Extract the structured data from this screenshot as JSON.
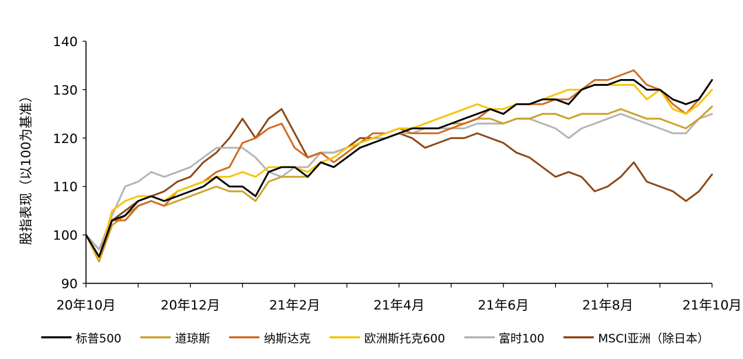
{
  "chart_data": {
    "type": "line",
    "ylabel": "股指表现（以100为基准）",
    "ylim": [
      90,
      140
    ],
    "yticks": [
      "90",
      "100",
      "110",
      "120",
      "130",
      "140"
    ],
    "xlim": [
      0,
      12
    ],
    "xticks": [
      {
        "pos": 0,
        "label": "20年10月"
      },
      {
        "pos": 2,
        "label": "20年12月"
      },
      {
        "pos": 4,
        "label": "21年2月"
      },
      {
        "pos": 6,
        "label": "21年4月"
      },
      {
        "pos": 8,
        "label": "21年6月"
      },
      {
        "pos": 10,
        "label": "21年8月"
      },
      {
        "pos": 12,
        "label": "21年10月"
      }
    ],
    "x": [
      0,
      0.25,
      0.5,
      0.75,
      1,
      1.25,
      1.5,
      1.75,
      2,
      2.25,
      2.5,
      2.75,
      3,
      3.25,
      3.5,
      3.75,
      4,
      4.25,
      4.5,
      4.75,
      5,
      5.25,
      5.5,
      5.75,
      6,
      6.25,
      6.5,
      6.75,
      7,
      7.25,
      7.5,
      7.75,
      8,
      8.25,
      8.5,
      8.75,
      9,
      9.25,
      9.5,
      9.75,
      10,
      10.25,
      10.5,
      10.75,
      11,
      11.25,
      11.5,
      11.75,
      12
    ],
    "series": [
      {
        "name": "标普500",
        "color": "#000000",
        "values": [
          100,
          95.5,
          103,
          104,
          107,
          108,
          107,
          108,
          109,
          110,
          112,
          110,
          110,
          108,
          113,
          114,
          114,
          112,
          115,
          114,
          116,
          118,
          119,
          120,
          121,
          122,
          122,
          122,
          123,
          124,
          125,
          126,
          125,
          127,
          127,
          128,
          128,
          127,
          130,
          131,
          131,
          132,
          132,
          130,
          130,
          128,
          127,
          128,
          132
        ]
      },
      {
        "name": "道琼斯",
        "color": "#C9A227",
        "values": [
          100,
          94.5,
          102,
          104,
          106,
          107,
          106,
          107,
          108,
          109,
          110,
          109,
          109,
          107,
          111,
          112,
          112,
          112,
          115,
          114,
          116,
          118,
          119,
          120,
          121,
          122,
          122,
          122,
          123,
          123,
          124,
          124,
          123,
          124,
          124,
          125,
          125,
          124,
          125,
          125,
          125,
          126,
          125,
          124,
          124,
          123,
          122,
          124,
          126.5
        ]
      },
      {
        "name": "纳斯达克",
        "color": "#D2691E",
        "values": [
          100,
          95,
          103,
          103,
          106,
          107,
          106,
          109,
          110,
          111,
          113,
          114,
          119,
          120,
          122,
          123,
          118,
          116,
          117,
          115,
          117,
          119,
          121,
          121,
          122,
          121,
          121,
          121,
          122,
          123,
          124,
          126,
          125,
          127,
          127,
          127,
          128,
          128,
          130,
          132,
          132,
          133,
          134,
          131,
          130,
          127,
          125,
          128,
          132
        ]
      },
      {
        "name": "欧洲斯托克600",
        "color": "#F5C400",
        "values": [
          100,
          95,
          105,
          107,
          108,
          108,
          107,
          109,
          110,
          111,
          112,
          112,
          113,
          112,
          114,
          114,
          114,
          113,
          115,
          116,
          118,
          119,
          120,
          121,
          122,
          122,
          123,
          124,
          125,
          126,
          127,
          126,
          126,
          127,
          127,
          128,
          129,
          130,
          130,
          131,
          131,
          131,
          131,
          128,
          130,
          126,
          125,
          127,
          130
        ]
      },
      {
        "name": "富时100",
        "color": "#B3B3B3",
        "values": [
          100,
          97,
          104,
          110,
          111,
          113,
          112,
          113,
          114,
          116,
          118,
          118,
          118,
          116,
          113,
          112,
          114,
          114,
          117,
          117,
          118,
          119,
          120,
          120,
          121,
          121,
          122,
          122,
          122,
          122,
          123,
          123,
          123,
          124,
          124,
          123,
          122,
          120,
          122,
          123,
          124,
          125,
          124,
          123,
          122,
          121,
          121,
          124,
          125
        ]
      },
      {
        "name": "MSCI亚洲（除日本）",
        "color": "#8B4513",
        "values": [
          100,
          97,
          103,
          105,
          107,
          108,
          109,
          111,
          112,
          115,
          117,
          120,
          124,
          120,
          124,
          126,
          121,
          116,
          117,
          117,
          118,
          120,
          120,
          120,
          121,
          120,
          118,
          119,
          120,
          120,
          121,
          120,
          119,
          117,
          116,
          114,
          112,
          113,
          112,
          109,
          110,
          112,
          115,
          111,
          110,
          109,
          107,
          109,
          112.5
        ]
      }
    ],
    "grid": false,
    "legend_position": "bottom"
  }
}
